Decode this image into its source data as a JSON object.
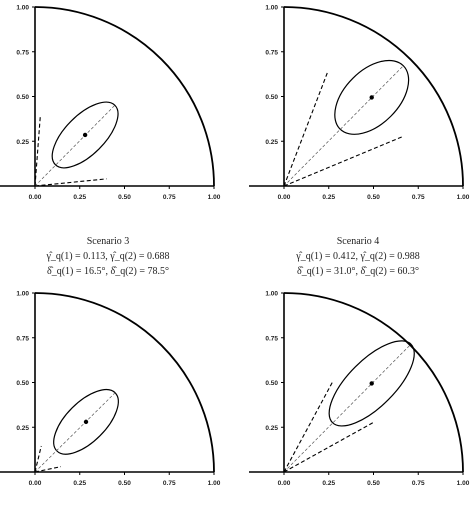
{
  "tick_labels": [
    "0.00",
    "0.25",
    "0.50",
    "0.75",
    "1.00"
  ],
  "scenarios": [
    {
      "id": "scenario-1",
      "center": [
        0.28,
        0.285
      ],
      "ellipse": {
        "semi_major": 0.235,
        "semi_minor": 0.11,
        "angle_deg": 45
      },
      "tangent_points": [
        [
          0.03,
          0.395
        ],
        [
          0.4,
          0.04
        ]
      ]
    },
    {
      "id": "scenario-2",
      "center": [
        0.49,
        0.495
      ],
      "ellipse": {
        "semi_major": 0.25,
        "semi_minor": 0.15,
        "angle_deg": 45
      },
      "tangent_points": [
        [
          0.245,
          0.64
        ],
        [
          0.66,
          0.275
        ]
      ]
    },
    {
      "id": "scenario-3",
      "title": "Scenario 3",
      "line1": "γ̂_q(1) = 0.113,   γ̂_q(2) = 0.688",
      "line2": "δ̂_q(1) = 16.5°,   δ̂_q(2) = 78.5°",
      "center": [
        0.285,
        0.28
      ],
      "ellipse": {
        "semi_major": 0.23,
        "semi_minor": 0.11,
        "angle_deg": 45
      },
      "tangent_points": [
        [
          0.035,
          0.145
        ],
        [
          0.145,
          0.03
        ]
      ]
    },
    {
      "id": "scenario-4",
      "title": "Scenario 4",
      "line1": "γ̂_q(1) = 0.412,   γ̂_q(2) = 0.988",
      "line2": "δ̂_q(1) = 31.0°,   δ̂_q(2) = 60.3°",
      "center": [
        0.49,
        0.495
      ],
      "ellipse": {
        "semi_major": 0.31,
        "semi_minor": 0.13,
        "angle_deg": 45
      },
      "tangent_points": [
        [
          0.275,
          0.51
        ],
        [
          0.505,
          0.28
        ]
      ]
    }
  ]
}
